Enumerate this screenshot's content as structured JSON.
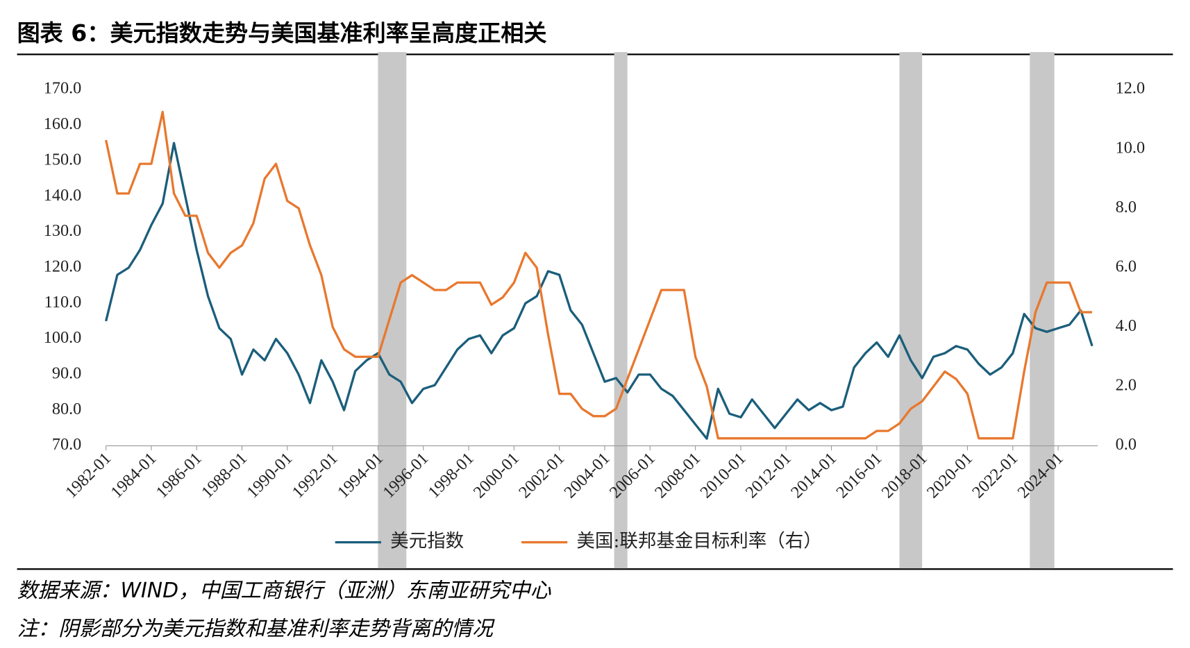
{
  "title": "图表 6：美元指数走势与美国基准利率呈高度正相关",
  "source": "数据来源：WIND，中国工商银行（亚洲）东南亚研究中心",
  "note": "注：阴影部分为美元指数和基准利率走势背离的情况",
  "chart_data": {
    "type": "line",
    "x": [
      "1982-01",
      "1982-07",
      "1983-01",
      "1983-07",
      "1984-01",
      "1984-07",
      "1985-01",
      "1985-07",
      "1986-01",
      "1986-07",
      "1987-01",
      "1987-07",
      "1988-01",
      "1988-07",
      "1989-01",
      "1989-07",
      "1990-01",
      "1990-07",
      "1991-01",
      "1991-07",
      "1992-01",
      "1992-07",
      "1993-01",
      "1993-07",
      "1994-01",
      "1994-07",
      "1995-01",
      "1995-07",
      "1996-01",
      "1996-07",
      "1997-01",
      "1997-07",
      "1998-01",
      "1998-07",
      "1999-01",
      "1999-07",
      "2000-01",
      "2000-07",
      "2001-01",
      "2001-07",
      "2002-01",
      "2002-07",
      "2003-01",
      "2003-07",
      "2004-01",
      "2004-07",
      "2005-01",
      "2005-07",
      "2006-01",
      "2006-07",
      "2007-01",
      "2007-07",
      "2008-01",
      "2008-07",
      "2009-01",
      "2009-07",
      "2010-01",
      "2010-07",
      "2011-01",
      "2011-07",
      "2012-01",
      "2012-07",
      "2013-01",
      "2013-07",
      "2014-01",
      "2014-07",
      "2015-01",
      "2015-07",
      "2016-01",
      "2016-07",
      "2017-01",
      "2017-07",
      "2018-01",
      "2018-07",
      "2019-01",
      "2019-07",
      "2020-01",
      "2020-07",
      "2021-01",
      "2021-07",
      "2022-01",
      "2022-07",
      "2023-01",
      "2023-07",
      "2024-01",
      "2024-07",
      "2025-01",
      "2025-07"
    ],
    "series": [
      {
        "name": "美元指数",
        "color": "#1b5e7b",
        "axis": "y",
        "values": [
          105,
          118,
          120,
          125,
          132,
          138,
          155,
          140,
          125,
          112,
          103,
          100,
          90,
          97,
          94,
          100,
          96,
          90,
          82,
          94,
          88,
          80,
          91,
          94,
          96,
          90,
          88,
          82,
          86,
          87,
          92,
          97,
          100,
          101,
          96,
          101,
          103,
          110,
          112,
          119,
          118,
          108,
          104,
          96,
          88,
          89,
          85,
          90,
          90,
          86,
          84,
          80,
          76,
          72,
          86,
          79,
          78,
          83,
          79,
          75,
          79,
          83,
          80,
          82,
          80,
          81,
          92,
          96,
          99,
          95,
          101,
          94,
          89,
          95,
          96,
          98,
          97,
          93,
          90,
          92,
          96,
          107,
          103,
          102,
          103,
          104,
          108,
          98
        ]
      },
      {
        "name": "美国:联邦基金目标利率（右）",
        "color": "#e8782e",
        "axis": "y2",
        "values": [
          10.3,
          8.5,
          8.5,
          9.5,
          9.5,
          11.25,
          8.5,
          7.75,
          7.75,
          6.5,
          6.0,
          6.5,
          6.75,
          7.5,
          9.0,
          9.5,
          8.25,
          8.0,
          6.75,
          5.75,
          4.0,
          3.25,
          3.0,
          3.0,
          3.0,
          4.25,
          5.5,
          5.75,
          5.5,
          5.25,
          5.25,
          5.5,
          5.5,
          5.5,
          4.75,
          5.0,
          5.5,
          6.5,
          6.0,
          3.75,
          1.75,
          1.75,
          1.25,
          1.0,
          1.0,
          1.25,
          2.25,
          3.25,
          4.25,
          5.25,
          5.25,
          5.25,
          3.0,
          2.0,
          0.25,
          0.25,
          0.25,
          0.25,
          0.25,
          0.25,
          0.25,
          0.25,
          0.25,
          0.25,
          0.25,
          0.25,
          0.25,
          0.25,
          0.5,
          0.5,
          0.75,
          1.25,
          1.5,
          2.0,
          2.5,
          2.25,
          1.75,
          0.25,
          0.25,
          0.25,
          0.25,
          2.5,
          4.5,
          5.5,
          5.5,
          5.5,
          4.5,
          4.5
        ]
      }
    ],
    "xlim": [
      "1982-01",
      "2025-10"
    ],
    "xticks": [
      "1982-01",
      "1984-01",
      "1986-01",
      "1988-01",
      "1990-01",
      "1992-01",
      "1994-01",
      "1996-01",
      "1998-01",
      "2000-01",
      "2002-01",
      "2004-01",
      "2006-01",
      "2008-01",
      "2010-01",
      "2012-01",
      "2014-01",
      "2016-01",
      "2018-01",
      "2020-01",
      "2022-01",
      "2024-01"
    ],
    "ylim": [
      70,
      170
    ],
    "yticks": [
      {
        "value": 70,
        "label": "70.0"
      },
      {
        "value": 80,
        "label": "80.0"
      },
      {
        "value": 90,
        "label": "90.0"
      },
      {
        "value": 100,
        "label": "100.0"
      },
      {
        "value": 110,
        "label": "110.0"
      },
      {
        "value": 120,
        "label": "120.0"
      },
      {
        "value": 130,
        "label": "130.0"
      },
      {
        "value": 140,
        "label": "140.0"
      },
      {
        "value": 150,
        "label": "150.0"
      },
      {
        "value": 160,
        "label": "160.0"
      },
      {
        "value": 170,
        "label": "170.0"
      }
    ],
    "y2lim": [
      0,
      12
    ],
    "y2ticks": [
      {
        "value": 0,
        "label": "0.0"
      },
      {
        "value": 2,
        "label": "2.0"
      },
      {
        "value": 4,
        "label": "4.0"
      },
      {
        "value": 6,
        "label": "6.0"
      },
      {
        "value": 8,
        "label": "8.0"
      },
      {
        "value": 10,
        "label": "10.0"
      },
      {
        "value": 12,
        "label": "12.0"
      }
    ],
    "shaded_periods": [
      {
        "start": "1994-01",
        "end": "1995-04"
      },
      {
        "start": "2004-06",
        "end": "2005-01"
      },
      {
        "start": "2017-01",
        "end": "2018-01"
      },
      {
        "start": "2022-10",
        "end": "2023-11"
      }
    ],
    "shade_color": "#c8c8c8",
    "legend": "bottom"
  }
}
